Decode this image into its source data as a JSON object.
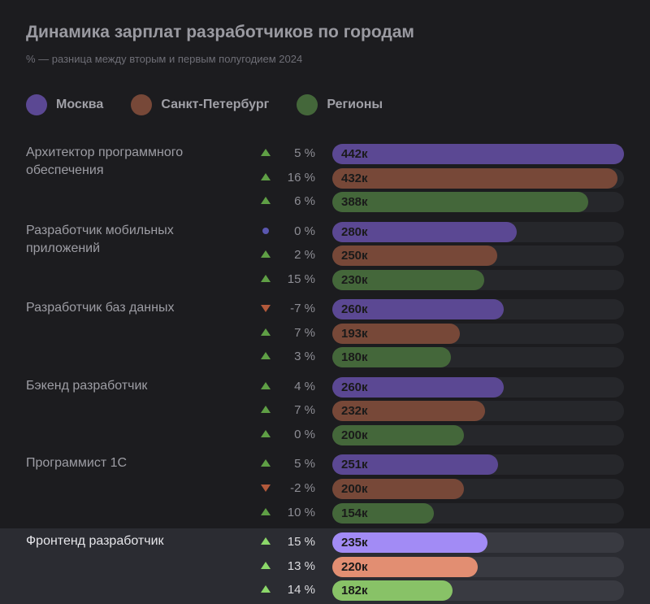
{
  "chart_data": {
    "type": "bar",
    "orientation": "horizontal",
    "title": "Динамика зарплат разработчиков по городам",
    "subtitle": "% — разница между вторым и первым полугодием 2024",
    "xlim": [
      0,
      442
    ],
    "series": [
      {
        "name": "Москва",
        "color": "#5b4893",
        "highlight_color": "#a28bf5"
      },
      {
        "name": "Санкт-Петербург",
        "color": "#774838",
        "highlight_color": "#e28e72"
      },
      {
        "name": "Регионы",
        "color": "#44673a",
        "highlight_color": "#88c267"
      }
    ],
    "groups": [
      {
        "category": "Архитектор программного обеспечения",
        "highlighted": false,
        "values": [
          442,
          432,
          388
        ],
        "value_labels": [
          "442к",
          "432к",
          "388к"
        ],
        "changes": [
          "5 %",
          "16 %",
          "6 %"
        ],
        "trend": [
          "up",
          "up",
          "up"
        ]
      },
      {
        "category": "Разработчик мобильных приложений",
        "highlighted": false,
        "values": [
          280,
          250,
          230
        ],
        "value_labels": [
          "280к",
          "250к",
          "230к"
        ],
        "changes": [
          "0 %",
          "2 %",
          "15 %"
        ],
        "trend": [
          "flat",
          "up",
          "up"
        ]
      },
      {
        "category": "Разработчик баз данных",
        "highlighted": false,
        "values": [
          260,
          193,
          180
        ],
        "value_labels": [
          "260к",
          "193к",
          "180к"
        ],
        "changes": [
          "-7 %",
          "7 %",
          "3 %"
        ],
        "trend": [
          "down",
          "up",
          "up"
        ]
      },
      {
        "category": "Бэкенд разработчик",
        "highlighted": false,
        "values": [
          260,
          232,
          200
        ],
        "value_labels": [
          "260к",
          "232к",
          "200к"
        ],
        "changes": [
          "4 %",
          "7 %",
          "0 %"
        ],
        "trend": [
          "up",
          "up",
          "up"
        ]
      },
      {
        "category": "Программист 1С",
        "highlighted": false,
        "values": [
          251,
          200,
          154
        ],
        "value_labels": [
          "251к",
          "200к",
          "154к"
        ],
        "changes": [
          "5 %",
          "-2 %",
          "10 %"
        ],
        "trend": [
          "up",
          "down",
          "up"
        ]
      },
      {
        "category": "Фронтенд разработчик",
        "highlighted": true,
        "values": [
          235,
          220,
          182
        ],
        "value_labels": [
          "235к",
          "220к",
          "182к"
        ],
        "changes": [
          "15 %",
          "13 %",
          "14 %"
        ],
        "trend": [
          "up",
          "up",
          "up"
        ]
      }
    ],
    "trend_colors": {
      "up": "#5f9f45",
      "down": "#b3593b",
      "flat": "#5a57b0",
      "up_highlight": "#8cd86a"
    }
  }
}
